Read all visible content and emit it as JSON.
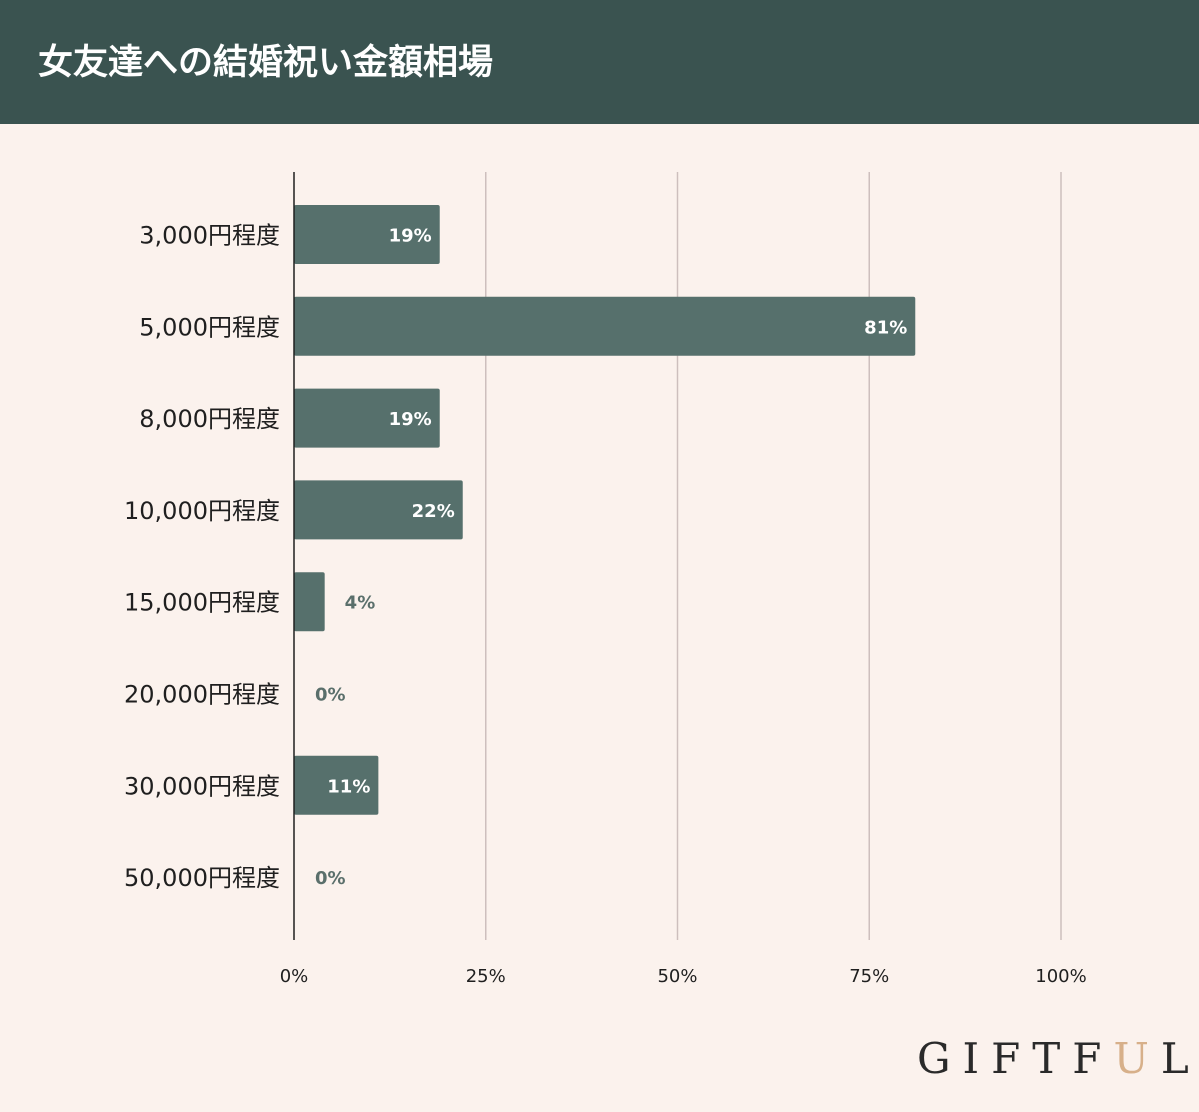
{
  "header": {
    "title": "女友達への結婚祝い金額相場"
  },
  "chart_data": {
    "type": "bar",
    "orientation": "horizontal",
    "title": "女友達への結婚祝い金額相場",
    "categories": [
      "3,000円程度",
      "5,000円程度",
      "8,000円程度",
      "10,000円程度",
      "15,000円程度",
      "20,000円程度",
      "30,000円程度",
      "50,000円程度"
    ],
    "values": [
      19,
      81,
      19,
      22,
      4,
      0,
      11,
      0
    ],
    "value_labels": [
      "19%",
      "81%",
      "19%",
      "22%",
      "4%",
      "0%",
      "11%",
      "0%"
    ],
    "xlim": [
      0,
      100
    ],
    "x_ticks": [
      "0%",
      "25%",
      "50%",
      "75%",
      "100%"
    ],
    "grid": true,
    "bar_color": "#56706c"
  },
  "logo": {
    "prefix": "GIFTF",
    "accent": "U",
    "suffix": "L",
    "accent_color": "#d7b08a"
  }
}
